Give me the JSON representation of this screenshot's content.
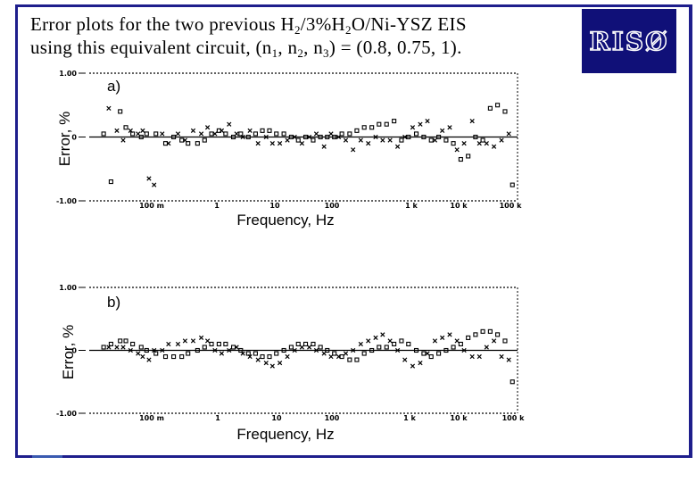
{
  "slide": {
    "title_parts": [
      "Error plots for the two previous H",
      "2",
      "/3%H",
      "2",
      "O/Ni-YSZ EIS"
    ],
    "title_line2_parts": [
      "using this equivalent circuit, (n",
      "1",
      ", n",
      "2",
      ", n",
      "3",
      ") = (0.8, 0.75, 1)."
    ],
    "logo_text": "RISØ",
    "colors": {
      "frame": "#1e1e8c",
      "logo_bg": "#101078"
    }
  },
  "chart_data": [
    {
      "type": "scatter",
      "panel_label": "a)",
      "xlabel": "Frequency, Hz",
      "ylabel": "Error, %",
      "x_scale": "log",
      "xlim": [
        0.03,
        120000
      ],
      "ylim": [
        -1.0,
        1.0
      ],
      "y_tick_labels": [
        "1.00",
        "0",
        "-1.00"
      ],
      "x_tick_labels": [
        "100 m",
        "1",
        "10",
        "100",
        "1 k",
        "10 k",
        "100 k"
      ],
      "zero_line": true,
      "series": [
        {
          "marker": "x",
          "x": [
            0.06,
            0.08,
            0.1,
            0.13,
            0.17,
            0.2,
            0.25,
            0.3,
            0.4,
            0.5,
            0.7,
            0.9,
            1.2,
            1.6,
            2,
            2.6,
            3.3,
            4.3,
            5.6,
            7,
            9,
            12,
            16,
            20,
            26,
            34,
            44,
            57,
            74,
            95,
            125,
            160,
            210,
            270,
            350,
            460,
            600,
            780,
            1000,
            1300,
            1700,
            2200,
            2900,
            3800,
            4900,
            6400,
            8300,
            10800,
            14000,
            18000,
            24000,
            31000,
            40000,
            52000,
            68000,
            88000
          ],
          "y": [
            0.45,
            0.1,
            -0.05,
            0.1,
            0.05,
            0.1,
            -0.65,
            -0.75,
            0.05,
            -0.1,
            0.05,
            -0.05,
            0.1,
            0.05,
            0.15,
            0.05,
            0.1,
            0.2,
            0.05,
            0.0,
            0.1,
            -0.1,
            0.0,
            -0.1,
            -0.1,
            -0.05,
            0.0,
            -0.1,
            0.0,
            0.05,
            -0.15,
            0.05,
            0.0,
            -0.05,
            -0.2,
            -0.05,
            -0.1,
            0.0,
            -0.05,
            -0.05,
            -0.15,
            0.0,
            0.15,
            0.2,
            0.25,
            -0.05,
            0.1,
            0.15,
            -0.2,
            -0.1,
            0.25,
            -0.1,
            -0.1,
            -0.15,
            -0.05,
            0.05
          ]
        },
        {
          "marker": "o",
          "x": [
            0.05,
            0.065,
            0.09,
            0.11,
            0.14,
            0.19,
            0.23,
            0.32,
            0.45,
            0.6,
            0.8,
            1.0,
            1.4,
            1.8,
            2.3,
            3,
            3.8,
            5,
            6.5,
            8.5,
            11,
            14,
            18,
            23,
            30,
            39,
            50,
            65,
            85,
            110,
            140,
            180,
            235,
            310,
            400,
            520,
            680,
            880,
            1150,
            1500,
            1950,
            2500,
            3300,
            4300,
            5600,
            7300,
            9500,
            12300,
            16000,
            20800,
            27000,
            35000,
            45500,
            59000,
            77000,
            100000
          ],
          "y": [
            0.05,
            -0.7,
            0.4,
            0.15,
            0.05,
            0.0,
            0.05,
            0.05,
            -0.1,
            0.0,
            -0.05,
            -0.1,
            -0.1,
            -0.05,
            0.05,
            0.1,
            0.05,
            0.0,
            0.05,
            0.0,
            0.05,
            0.1,
            0.1,
            0.05,
            0.05,
            0.0,
            -0.05,
            0.0,
            -0.05,
            0.0,
            0.0,
            0.0,
            0.05,
            0.05,
            0.1,
            0.15,
            0.15,
            0.2,
            0.2,
            0.25,
            -0.05,
            0.0,
            0.05,
            0.0,
            -0.05,
            0.0,
            -0.05,
            -0.1,
            -0.35,
            -0.3,
            0.0,
            -0.05,
            0.45,
            0.5,
            0.4,
            -0.75
          ]
        }
      ]
    },
    {
      "type": "scatter",
      "panel_label": "b)",
      "xlabel": "Frequency, Hz",
      "ylabel": "Error, %",
      "x_scale": "log",
      "xlim": [
        0.03,
        120000
      ],
      "ylim": [
        -1.0,
        1.0
      ],
      "y_tick_labels": [
        "1.00",
        "0",
        "-1.00"
      ],
      "x_tick_labels": [
        "100 m",
        "1",
        "10",
        "100",
        "1 k",
        "10 k",
        "100 k"
      ],
      "zero_line": true,
      "series": [
        {
          "marker": "x",
          "x": [
            0.06,
            0.08,
            0.1,
            0.13,
            0.17,
            0.2,
            0.25,
            0.3,
            0.4,
            0.5,
            0.7,
            0.9,
            1.2,
            1.6,
            2,
            2.6,
            3.3,
            4.3,
            5.6,
            7,
            9,
            12,
            16,
            20,
            26,
            34,
            44,
            57,
            74,
            95,
            125,
            160,
            210,
            270,
            350,
            460,
            600,
            780,
            1000,
            1300,
            1700,
            2200,
            2900,
            3800,
            4900,
            6400,
            8300,
            10800,
            14000,
            18000,
            24000,
            31000,
            40000,
            52000,
            68000,
            88000
          ],
          "y": [
            0.05,
            0.05,
            0.05,
            0.0,
            -0.05,
            -0.1,
            -0.15,
            0.0,
            0.0,
            0.1,
            0.1,
            0.15,
            0.15,
            0.2,
            0.15,
            0.0,
            -0.05,
            0.0,
            0.05,
            -0.05,
            -0.1,
            -0.15,
            -0.2,
            -0.25,
            -0.2,
            -0.1,
            0.0,
            0.05,
            0.05,
            0.0,
            -0.05,
            -0.1,
            -0.1,
            -0.05,
            0.0,
            0.1,
            0.15,
            0.2,
            0.25,
            0.15,
            0.0,
            -0.15,
            -0.25,
            -0.2,
            -0.05,
            0.15,
            0.2,
            0.25,
            0.15,
            0.0,
            -0.1,
            -0.1,
            0.05,
            0.15,
            -0.1,
            -0.15
          ]
        },
        {
          "marker": "o",
          "x": [
            0.05,
            0.065,
            0.09,
            0.11,
            0.14,
            0.19,
            0.23,
            0.32,
            0.45,
            0.6,
            0.8,
            1.0,
            1.4,
            1.8,
            2.3,
            3,
            3.8,
            5,
            6.5,
            8.5,
            11,
            14,
            18,
            23,
            30,
            39,
            50,
            65,
            85,
            110,
            140,
            180,
            235,
            310,
            400,
            520,
            680,
            880,
            1150,
            1500,
            1950,
            2500,
            3300,
            4300,
            5600,
            7300,
            9500,
            12300,
            16000,
            20800,
            27000,
            35000,
            45500,
            59000,
            77000,
            100000
          ],
          "y": [
            0.05,
            0.1,
            0.15,
            0.15,
            0.1,
            0.05,
            0.0,
            -0.05,
            -0.1,
            -0.1,
            -0.1,
            -0.05,
            0.0,
            0.05,
            0.1,
            0.1,
            0.1,
            0.05,
            0.0,
            -0.05,
            -0.05,
            -0.1,
            -0.1,
            -0.05,
            0.0,
            0.05,
            0.1,
            0.1,
            0.1,
            0.05,
            0.0,
            -0.05,
            -0.1,
            -0.15,
            -0.15,
            -0.05,
            0.0,
            0.05,
            0.05,
            0.1,
            0.15,
            0.1,
            0.0,
            -0.05,
            -0.1,
            -0.05,
            0.0,
            0.05,
            0.1,
            0.2,
            0.25,
            0.3,
            0.3,
            0.25,
            0.15,
            -0.5
          ]
        }
      ]
    }
  ]
}
